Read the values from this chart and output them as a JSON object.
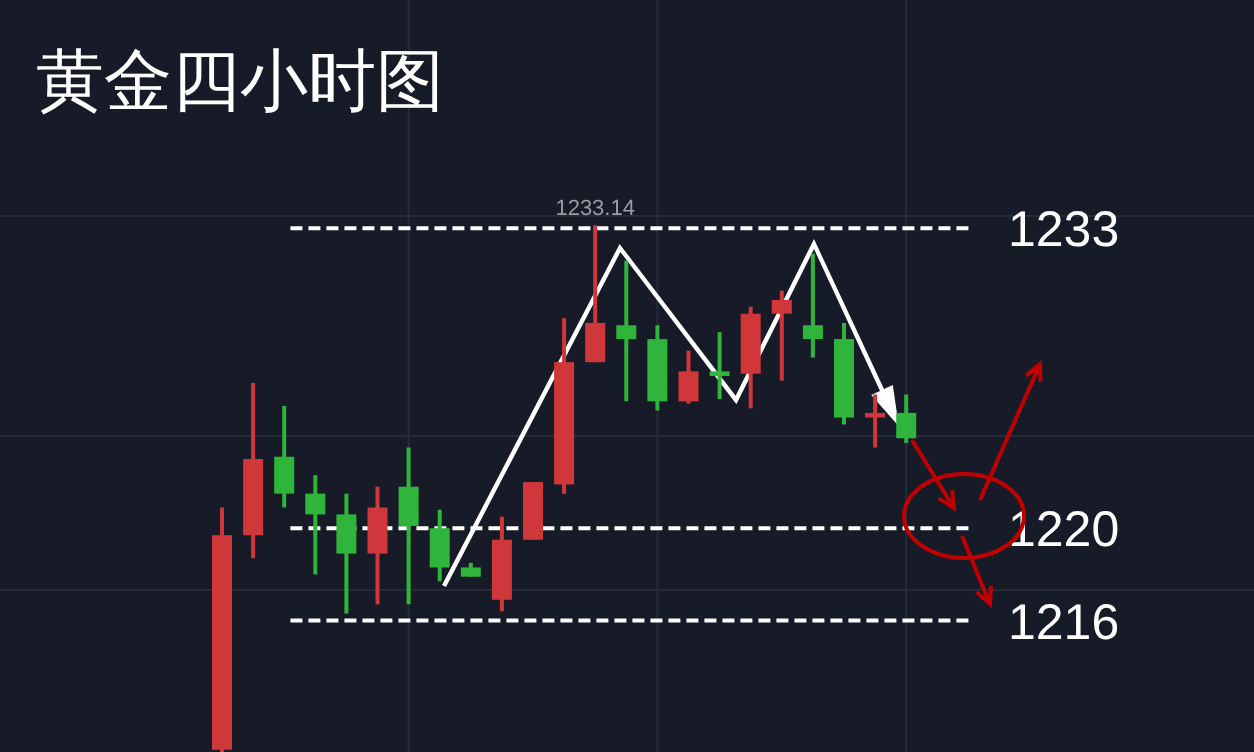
{
  "chart_data": {
    "type": "candlestick",
    "title": "黄金四小时图",
    "categories": [
      null,
      null,
      null,
      null,
      null,
      null,
      null,
      null,
      null,
      null,
      null,
      null,
      null,
      null,
      null,
      null,
      null,
      null,
      null,
      null,
      null,
      null,
      null
    ],
    "ohlc": [
      [
        1210.4,
        1220.9,
        1210.3,
        1219.7
      ],
      [
        1219.7,
        1226.3,
        1218.7,
        1223.0
      ],
      [
        1223.1,
        1225.3,
        1220.9,
        1221.5
      ],
      [
        1221.5,
        1222.3,
        1218.0,
        1220.6
      ],
      [
        1220.6,
        1221.5,
        1216.3,
        1218.9
      ],
      [
        1218.9,
        1221.8,
        1216.7,
        1220.9
      ],
      [
        1221.8,
        1223.5,
        1216.7,
        1220.1
      ],
      [
        1220.0,
        1220.8,
        1217.7,
        1218.3
      ],
      [
        1218.3,
        1218.5,
        1217.9,
        1217.9
      ],
      [
        1216.9,
        1220.5,
        1216.4,
        1219.5
      ],
      [
        1219.5,
        1222.0,
        1219.5,
        1222.0
      ],
      [
        1221.9,
        1229.1,
        1221.5,
        1227.2
      ],
      [
        1227.2,
        1233.14,
        1227.2,
        1228.9
      ],
      [
        1228.8,
        1231.6,
        1225.5,
        1228.2
      ],
      [
        1228.2,
        1228.8,
        1225.1,
        1225.5
      ],
      [
        1225.5,
        1227.7,
        1225.4,
        1226.8
      ],
      [
        1226.8,
        1228.5,
        1225.6,
        1226.6
      ],
      [
        1226.7,
        1229.6,
        1225.2,
        1229.3
      ],
      [
        1229.3,
        1230.3,
        1226.4,
        1229.9
      ],
      [
        1228.8,
        1231.9,
        1227.4,
        1228.2
      ],
      [
        1228.2,
        1228.9,
        1224.5,
        1224.8
      ],
      [
        1224.8,
        1225.8,
        1223.5,
        1225.0
      ],
      [
        1225.0,
        1225.8,
        1223.7,
        1223.9
      ]
    ],
    "colors": [
      "#d0373b",
      "#d0373b",
      "#2fb53b",
      "#2fb53b",
      "#2fb53b",
      "#d0373b",
      "#2fb53b",
      "#2fb53b",
      "#2fb53b",
      "#d0373b",
      "#d0373b",
      "#d0373b",
      "#d0373b",
      "#2fb53b",
      "#2fb53b",
      "#d0373b",
      "#2fb53b",
      "#d0373b",
      "#d0373b",
      "#2fb53b",
      "#2fb53b",
      "#d0373b",
      "#2fb53b"
    ],
    "ylim": [
      1210.3,
      1242.9
    ],
    "grid": true,
    "ref_lines": [
      {
        "axis": "y",
        "value": 1233,
        "label": "1233",
        "color": "#ffffff",
        "line_style": "dashed"
      },
      {
        "axis": "y",
        "value": 1220,
        "label": "1220",
        "color": "#ffffff",
        "line_style": "dashed"
      },
      {
        "axis": "y",
        "value": 1216,
        "label": "1216",
        "color": "#ffffff",
        "line_style": "dashed"
      }
    ],
    "annotations": [
      {
        "text": "1233.14",
        "y": 1233.14
      }
    ]
  }
}
